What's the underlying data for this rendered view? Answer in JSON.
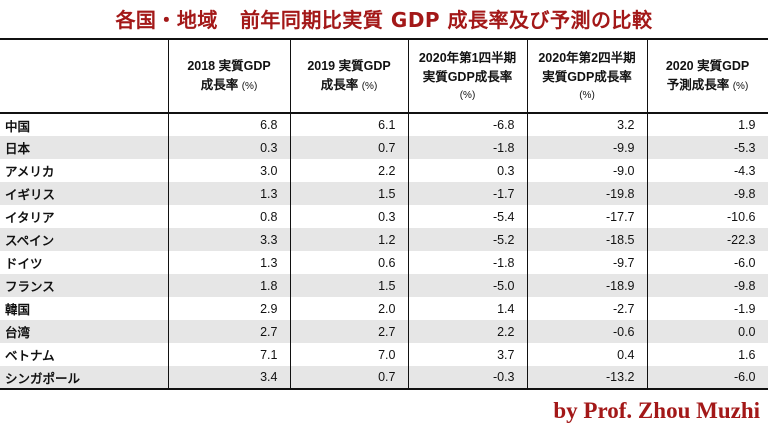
{
  "title": {
    "part1": "各国・地域",
    "part2": "前年同期比実質 GDP 成長率及び予測の比較"
  },
  "columns": [
    {
      "line1": "2018 実質GDP",
      "line2": "成長率",
      "unit": "(%)"
    },
    {
      "line1": "2019 実質GDP",
      "line2": "成長率",
      "unit": "(%)"
    },
    {
      "line1": "2020年第1四半期",
      "line2": "実質GDP成長率",
      "unit": "(%)"
    },
    {
      "line1": "2020年第2四半期",
      "line2": "実質GDP成長率",
      "unit": "(%)"
    },
    {
      "line1": "2020 実質GDP",
      "line2": "予測成長率",
      "unit": "(%)"
    }
  ],
  "rows": [
    [
      "中国",
      "6.8",
      "6.1",
      "-6.8",
      "3.2",
      "1.9"
    ],
    [
      "日本",
      "0.3",
      "0.7",
      "-1.8",
      "-9.9",
      "-5.3"
    ],
    [
      "アメリカ",
      "3.0",
      "2.2",
      "0.3",
      "-9.0",
      "-4.3"
    ],
    [
      "イギリス",
      "1.3",
      "1.5",
      "-1.7",
      "-19.8",
      "-9.8"
    ],
    [
      "イタリア",
      "0.8",
      "0.3",
      "-5.4",
      "-17.7",
      "-10.6"
    ],
    [
      "スペイン",
      "3.3",
      "1.2",
      "-5.2",
      "-18.5",
      "-22.3"
    ],
    [
      "ドイツ",
      "1.3",
      "0.6",
      "-1.8",
      "-9.7",
      "-6.0"
    ],
    [
      "フランス",
      "1.8",
      "1.5",
      "-5.0",
      "-18.9",
      "-9.8"
    ],
    [
      "韓国",
      "2.9",
      "2.0",
      "1.4",
      "-2.7",
      "-1.9"
    ],
    [
      "台湾",
      "2.7",
      "2.7",
      "2.2",
      "-0.6",
      "0.0"
    ],
    [
      "ベトナム",
      "7.1",
      "7.0",
      "3.7",
      "0.4",
      "1.6"
    ],
    [
      "シンガポール",
      "3.4",
      "0.7",
      "-0.3",
      "-13.2",
      "-6.0"
    ]
  ],
  "credit": "by Prof. Zhou Muzhi",
  "colors": {
    "title": "#a31818",
    "credit": "#a31818",
    "stripe": "#e6e6e6"
  }
}
